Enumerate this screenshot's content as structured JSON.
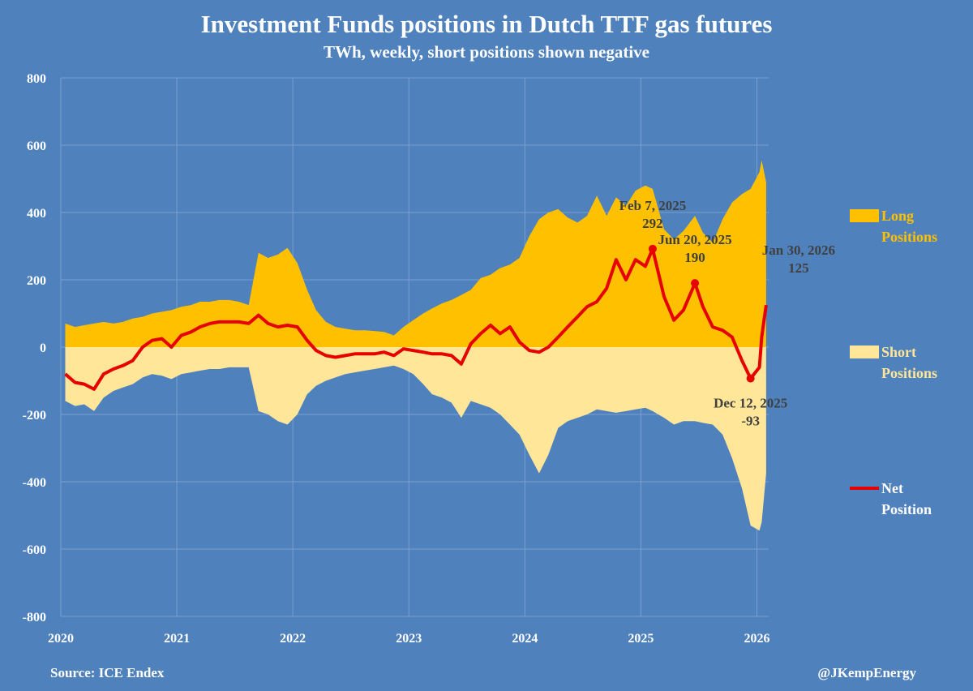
{
  "title": "Investment Funds positions in Dutch TTF gas futures",
  "subtitle": "TWh, weekly, short positions shown negative",
  "source": "Source: ICE Endex",
  "handle": "@JKempEnergy",
  "colors": {
    "background": "#4f81bd",
    "long": "#ffc000",
    "short": "#ffe699",
    "net": "#e60000",
    "grid": "#7b9fd0",
    "annotation": "#404040"
  },
  "chart_data": {
    "type": "area",
    "title": "Investment Funds positions in Dutch TTF gas futures",
    "subtitle": "TWh, weekly, short positions shown negative",
    "xlabel": "",
    "ylabel": "",
    "ylim": [
      -800,
      800
    ],
    "xlim": [
      "2020-01-01",
      "2026-02-07"
    ],
    "grid": true,
    "legend": "right",
    "yticks": [
      "800",
      "600",
      "400",
      "200",
      "0",
      "-200",
      "-400",
      "-600",
      "-800"
    ],
    "xticks": [
      "2020",
      "2021",
      "2022",
      "2023",
      "2024",
      "2025",
      "2026"
    ],
    "x": [
      "2020-01-15",
      "2020-02-15",
      "2020-03-15",
      "2020-04-15",
      "2020-05-15",
      "2020-06-15",
      "2020-07-15",
      "2020-08-15",
      "2020-09-15",
      "2020-10-15",
      "2020-11-15",
      "2020-12-15",
      "2021-01-15",
      "2021-02-15",
      "2021-03-15",
      "2021-04-15",
      "2021-05-15",
      "2021-06-15",
      "2021-07-15",
      "2021-08-15",
      "2021-09-15",
      "2021-10-15",
      "2021-11-15",
      "2021-12-15",
      "2022-01-15",
      "2022-02-15",
      "2022-03-15",
      "2022-04-15",
      "2022-05-15",
      "2022-06-15",
      "2022-07-15",
      "2022-08-15",
      "2022-09-15",
      "2022-10-15",
      "2022-11-15",
      "2022-12-15",
      "2023-01-15",
      "2023-02-15",
      "2023-03-15",
      "2023-04-15",
      "2023-05-15",
      "2023-06-15",
      "2023-07-15",
      "2023-08-15",
      "2023-09-15",
      "2023-10-15",
      "2023-11-15",
      "2023-12-15",
      "2024-01-15",
      "2024-02-15",
      "2024-03-15",
      "2024-04-15",
      "2024-05-15",
      "2024-06-15",
      "2024-07-15",
      "2024-08-15",
      "2024-09-15",
      "2024-10-15",
      "2024-11-15",
      "2024-12-15",
      "2025-01-15",
      "2025-02-07",
      "2025-03-15",
      "2025-04-15",
      "2025-05-15",
      "2025-06-20",
      "2025-07-15",
      "2025-08-15",
      "2025-09-15",
      "2025-10-15",
      "2025-11-15",
      "2025-12-12",
      "2026-01-09",
      "2026-01-16",
      "2026-01-30"
    ],
    "series": [
      {
        "name": "Long Positions",
        "line1": "Long",
        "line2": "Positions",
        "kind": "area",
        "values": [
          70,
          60,
          65,
          70,
          75,
          70,
          75,
          85,
          90,
          100,
          105,
          110,
          120,
          125,
          135,
          135,
          140,
          140,
          135,
          125,
          280,
          265,
          275,
          295,
          250,
          170,
          110,
          75,
          60,
          55,
          50,
          50,
          48,
          45,
          35,
          60,
          80,
          100,
          115,
          130,
          140,
          155,
          170,
          205,
          215,
          235,
          245,
          265,
          330,
          380,
          400,
          410,
          385,
          370,
          390,
          450,
          390,
          445,
          420,
          465,
          480,
          470,
          350,
          320,
          345,
          390,
          340,
          310,
          380,
          430,
          455,
          470,
          520,
          555,
          490
        ]
      },
      {
        "name": "Short Positions",
        "line1": "Short",
        "line2": "Positions",
        "kind": "area",
        "values": [
          -160,
          -175,
          -170,
          -190,
          -150,
          -130,
          -120,
          -110,
          -90,
          -80,
          -85,
          -95,
          -80,
          -75,
          -70,
          -65,
          -65,
          -60,
          -60,
          -60,
          -190,
          -200,
          -220,
          -230,
          -200,
          -140,
          -115,
          -100,
          -90,
          -80,
          -75,
          -70,
          -65,
          -60,
          -55,
          -65,
          -80,
          -110,
          -140,
          -150,
          -165,
          -210,
          -160,
          -170,
          -180,
          -200,
          -230,
          -260,
          -320,
          -375,
          -320,
          -240,
          -220,
          -210,
          -200,
          -185,
          -190,
          -195,
          -190,
          -185,
          -180,
          -190,
          -210,
          -230,
          -220,
          -220,
          -225,
          -230,
          -260,
          -330,
          -420,
          -530,
          -545,
          -520,
          -375
        ]
      },
      {
        "name": "Net Position",
        "line1": "Net",
        "line2": "Position",
        "kind": "line",
        "values": [
          -80,
          -105,
          -110,
          -125,
          -80,
          -65,
          -55,
          -40,
          0,
          20,
          25,
          0,
          35,
          45,
          60,
          70,
          75,
          75,
          75,
          70,
          95,
          70,
          60,
          65,
          60,
          20,
          -10,
          -25,
          -30,
          -25,
          -20,
          -20,
          -20,
          -15,
          -25,
          -5,
          -10,
          -15,
          -20,
          -20,
          -25,
          -50,
          10,
          40,
          65,
          40,
          60,
          15,
          -10,
          -15,
          0,
          30,
          60,
          90,
          120,
          135,
          175,
          260,
          200,
          260,
          240,
          292,
          150,
          80,
          110,
          190,
          120,
          60,
          50,
          30,
          -40,
          -93,
          -60,
          30,
          125
        ]
      }
    ],
    "annotations": [
      {
        "date": "2025-02-07",
        "label": "Feb 7, 2025",
        "value": "292",
        "y": 292
      },
      {
        "date": "2025-06-20",
        "label": "Jun 20, 2025",
        "value": "190",
        "y": 190
      },
      {
        "date": "2025-12-12",
        "label": "Dec 12, 2025",
        "value": "-93",
        "y": -93
      },
      {
        "date": "2026-01-30",
        "label": "Jan 30, 2026",
        "value": "125",
        "y": 125
      }
    ]
  }
}
